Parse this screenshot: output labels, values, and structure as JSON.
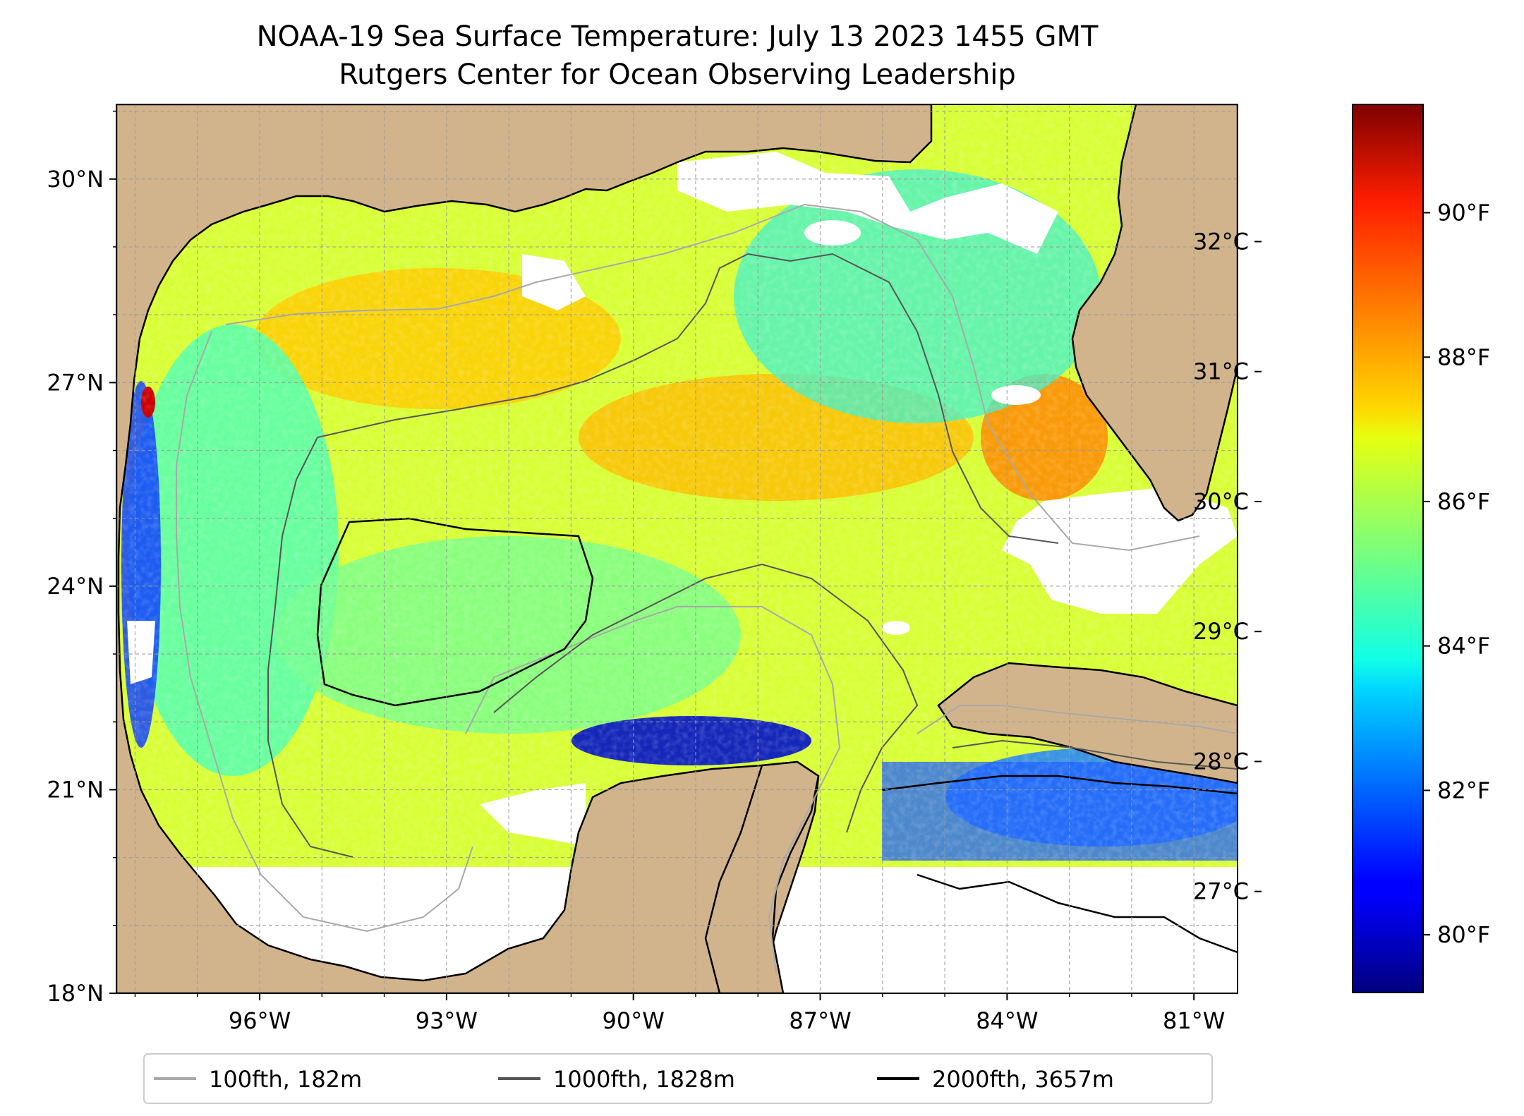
{
  "title": "NOAA-19 Sea Surface Temperature: July 13 2023 1455 GMT",
  "subtitle": "Rutgers Center for Ocean Observing Leadership",
  "map": {
    "projection": "PlateCarree",
    "lon_range": [
      -98.3,
      -80.3
    ],
    "lat_range": [
      18,
      31.1
    ],
    "lon_ticks": [
      -96,
      -93,
      -90,
      -87,
      -84,
      -81
    ],
    "lat_ticks": [
      18,
      21,
      24,
      27,
      30
    ],
    "lon_tick_labels": [
      "96°W",
      "93°W",
      "90°W",
      "87°W",
      "84°W",
      "81°W"
    ],
    "lat_tick_labels": [
      "18°N",
      "21°N",
      "24°N",
      "27°N",
      "30°N"
    ],
    "gridlines": true,
    "land_color": "#D2B48C",
    "no_data_color": "#ffffff",
    "no_data_south_of_lat": 19.95
  },
  "colorbar": {
    "colormap": "jet",
    "celsius_ticks": [
      27,
      28,
      29,
      30,
      31,
      32
    ],
    "celsius_labels": [
      "27°C",
      "28°C",
      "29°C",
      "30°C",
      "31°C",
      "32°C"
    ],
    "fahrenheit_ticks": [
      80,
      82,
      84,
      86,
      88,
      90
    ],
    "fahrenheit_labels": [
      "80°F",
      "82°F",
      "84°F",
      "86°F",
      "88°F",
      "90°F"
    ],
    "f_range": [
      79.2,
      91.5
    ]
  },
  "legend": {
    "position": "below-center",
    "entries": [
      {
        "label": "100fth, 182m",
        "color": "#a9a9a9"
      },
      {
        "label": "1000fth, 1828m",
        "color": "#555555"
      },
      {
        "label": "2000fth, 3657m",
        "color": "#000000"
      }
    ]
  }
}
